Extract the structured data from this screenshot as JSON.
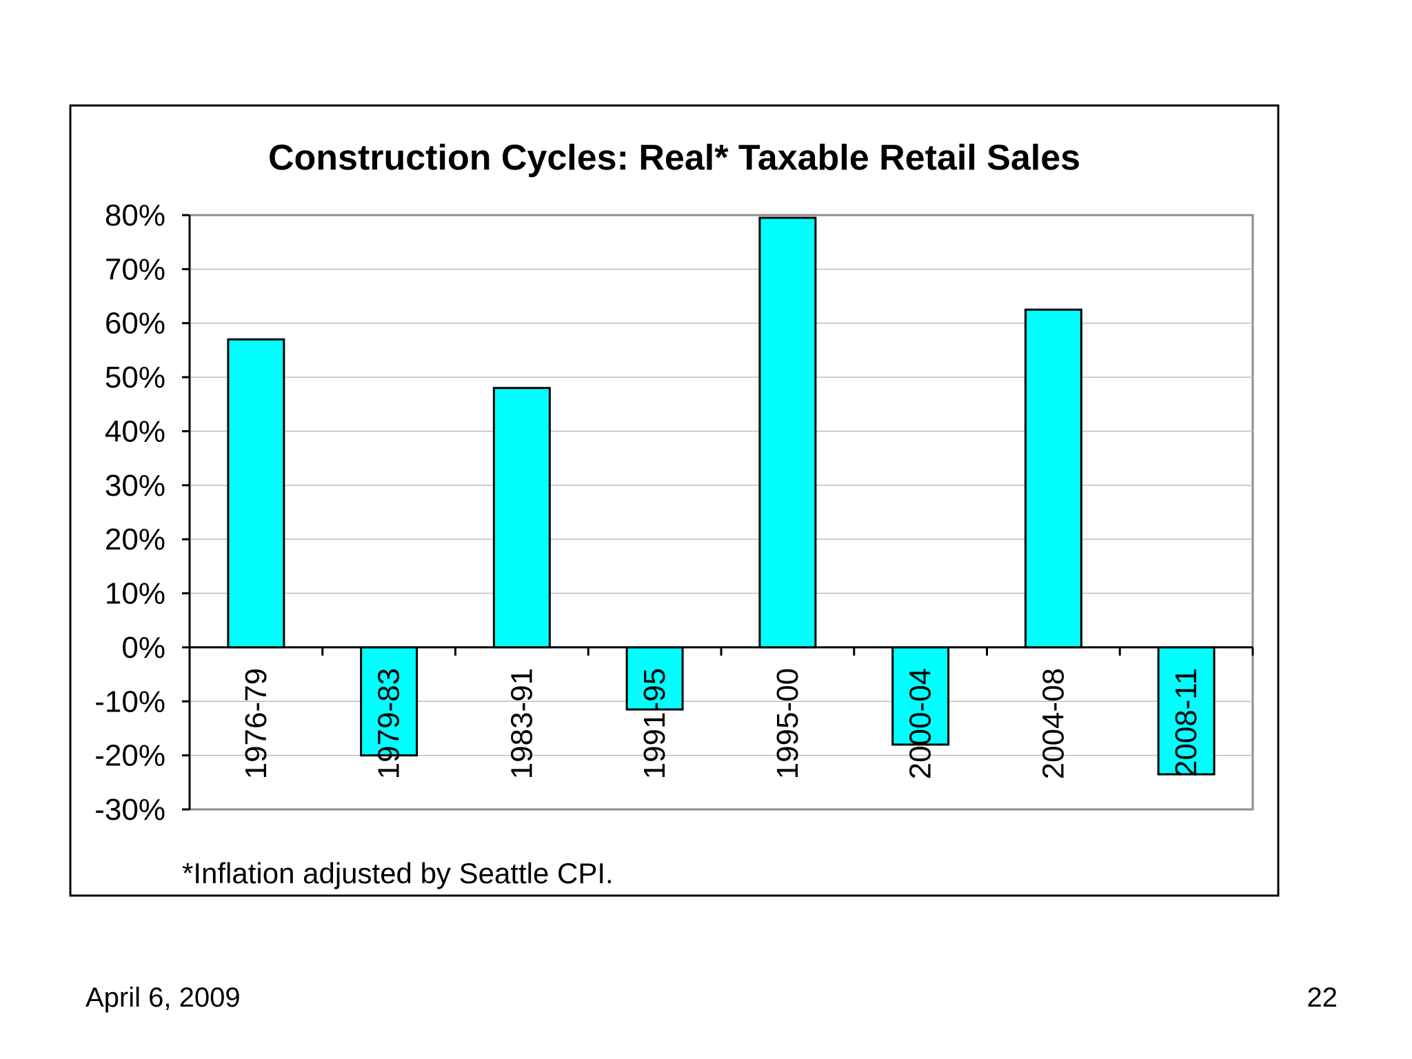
{
  "slide": {
    "date": "April 6, 2009",
    "page_number": "22"
  },
  "chart_data": {
    "type": "bar",
    "title": "Construction Cycles: Real* Taxable Retail Sales",
    "categories": [
      "1976-79",
      "1979-83",
      "1983-91",
      "1991-95",
      "1995-00",
      "2000-04",
      "2004-08",
      "2008-11"
    ],
    "values": [
      57,
      -20,
      48,
      -11.5,
      79.5,
      -18,
      62.5,
      -23.5
    ],
    "value_unit": "%",
    "ylim": [
      -30,
      80
    ],
    "yticks": [
      80,
      70,
      60,
      50,
      40,
      30,
      20,
      10,
      0,
      -10,
      -20,
      -30
    ],
    "ytick_labels": [
      "80%",
      "70%",
      "60%",
      "50%",
      "40%",
      "30%",
      "20%",
      "10%",
      "0%",
      "-10%",
      "-20%",
      "-30%"
    ],
    "grid": true,
    "bar_color": "#00FFFF",
    "bar_edge_color": "#000000",
    "xlabel": "",
    "ylabel": "",
    "footnote": "*Inflation adjusted by Seattle CPI."
  }
}
